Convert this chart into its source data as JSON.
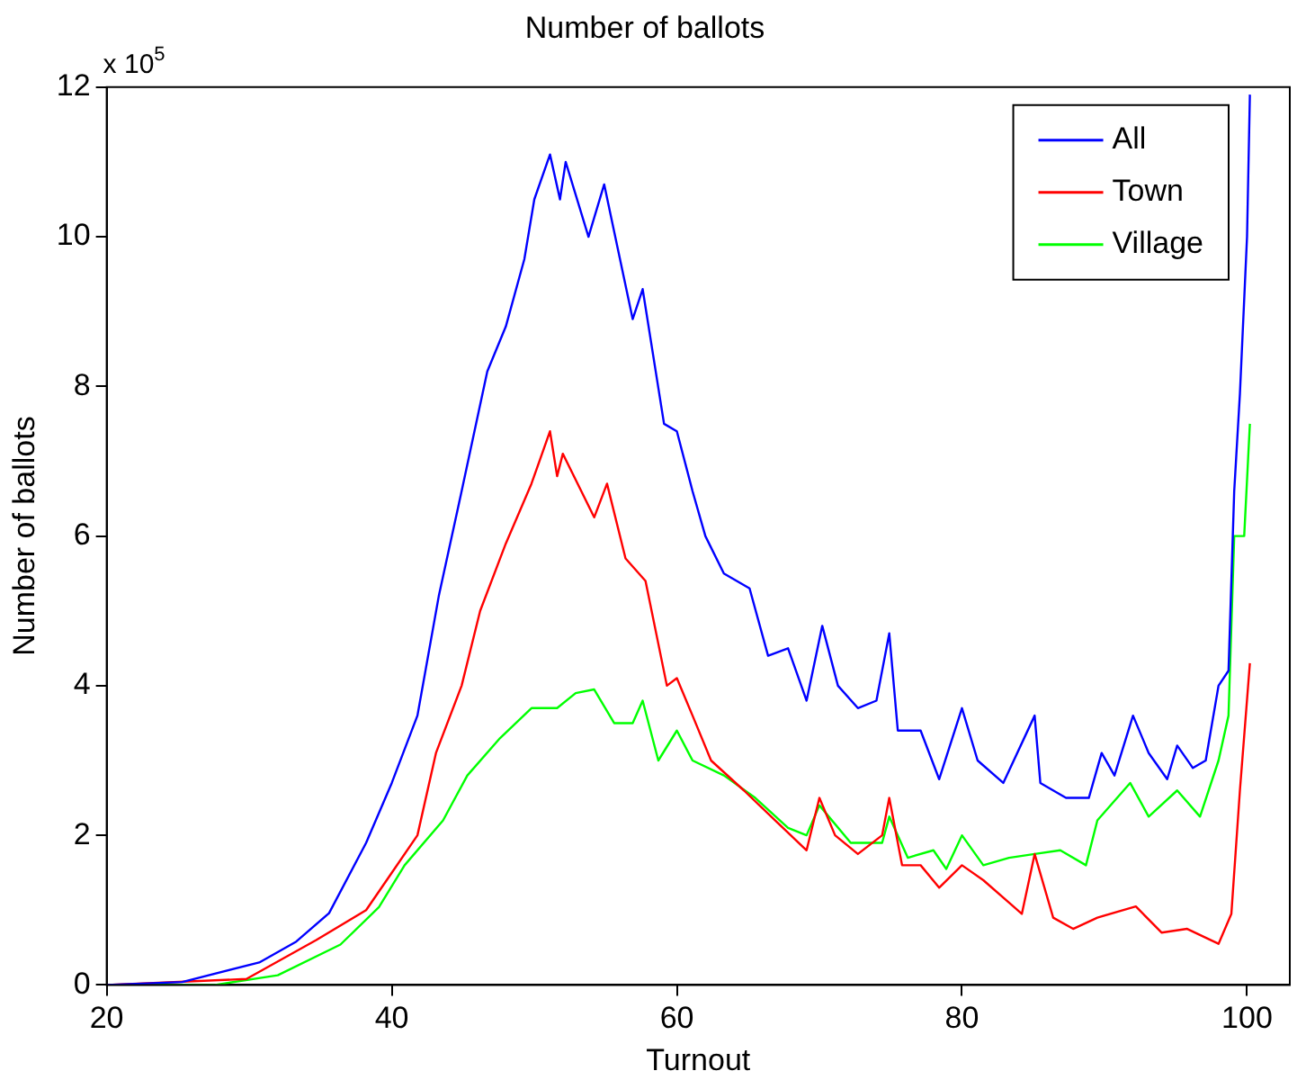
{
  "chart_data": {
    "type": "line",
    "title": "Number of ballots",
    "xlabel": "Turnout",
    "ylabel": "Number of ballots",
    "annotations": [
      "x 10$^{5}$"
    ],
    "xlim": [
      20,
      103
    ],
    "xticks": [
      20,
      40,
      60,
      80,
      100
    ],
    "ylim": [
      0,
      12
    ],
    "yticks": [
      0,
      2,
      4,
      6,
      8,
      10,
      12
    ],
    "grid": false,
    "legend": "top right",
    "marker": "none",
    "line_style": "solid",
    "series": [
      {
        "name": "All",
        "color": "#0000ff",
        "x": [
          20,
          25.3,
          30.7,
          33.3,
          35.6,
          38.2,
          40,
          41.8,
          43.3,
          44.9,
          46.7,
          48,
          49.3,
          50,
          51.1,
          51.8,
          52.2,
          53.8,
          54.9,
          56.9,
          57.6,
          59.1,
          60,
          61.1,
          62,
          63.3,
          65.1,
          66.4,
          67.8,
          69.1,
          70.2,
          71.3,
          72.7,
          74,
          74.9,
          75.5,
          77.1,
          78.4,
          80,
          81.1,
          82.9,
          85.1,
          85.5,
          87.3,
          88.9,
          89.8,
          90.7,
          92,
          93.1,
          94.4,
          95.1,
          96.2,
          97.1,
          98,
          98.7,
          99.1,
          99.5,
          100,
          100.2
        ],
        "values": [
          0,
          0.04,
          0.3,
          0.58,
          0.96,
          1.9,
          2.7,
          3.6,
          5.2,
          6.6,
          8.2,
          8.8,
          9.7,
          10.5,
          11.1,
          10.5,
          11,
          10,
          10.7,
          8.9,
          9.3,
          7.5,
          7.4,
          6.6,
          6,
          5.5,
          5.3,
          4.4,
          4.5,
          3.8,
          4.8,
          4,
          3.7,
          3.8,
          4.7,
          3.4,
          3.4,
          2.75,
          3.7,
          3,
          2.7,
          3.6,
          2.7,
          2.5,
          2.5,
          3.1,
          2.8,
          3.6,
          3.1,
          2.75,
          3.2,
          2.9,
          3,
          4,
          4.2,
          6.6,
          7.9,
          10,
          11.9
        ]
      },
      {
        "name": "Town",
        "color": "#ff0000",
        "x": [
          20,
          29.8,
          34.7,
          38.2,
          40,
          41.8,
          43.1,
          44.9,
          46.2,
          48,
          49.8,
          51.1,
          51.6,
          52,
          54.2,
          55.1,
          56.4,
          57.8,
          59.3,
          60,
          61.1,
          62.4,
          64.7,
          66.9,
          69.1,
          70,
          71.1,
          72.7,
          74.4,
          74.9,
          75.8,
          77.1,
          78.4,
          80,
          81.5,
          83.3,
          84.2,
          85.1,
          86.4,
          87.8,
          89.5,
          92.2,
          94,
          95.8,
          98,
          98.9,
          99.5,
          100.2
        ],
        "values": [
          0,
          0.08,
          0.6,
          1,
          1.5,
          2,
          3.1,
          4,
          5,
          5.9,
          6.7,
          7.4,
          6.8,
          7.1,
          6.25,
          6.7,
          5.7,
          5.4,
          4,
          4.1,
          3.6,
          3,
          2.6,
          2.2,
          1.8,
          2.5,
          2,
          1.75,
          2,
          2.5,
          1.6,
          1.6,
          1.3,
          1.6,
          1.4,
          1.1,
          0.95,
          1.75,
          0.9,
          0.75,
          0.9,
          1.05,
          0.7,
          0.75,
          0.55,
          0.95,
          2.6,
          4.3
        ]
      },
      {
        "name": "Village",
        "color": "#00ff00",
        "x": [
          20,
          27.6,
          32,
          36.4,
          39.1,
          40.9,
          43.6,
          45.3,
          47.6,
          49.8,
          51.6,
          52.9,
          54.2,
          55.6,
          56.9,
          57.6,
          58.7,
          60,
          61.1,
          63.3,
          65.5,
          67.8,
          69.1,
          70,
          72.2,
          74.4,
          74.9,
          76.2,
          78,
          78.9,
          80,
          81.5,
          83.3,
          85.1,
          86.9,
          88.7,
          89.5,
          91.8,
          93.1,
          95.1,
          96.7,
          98,
          98.7,
          99.1,
          99.8,
          100.2
        ],
        "values": [
          0,
          0,
          0.13,
          0.54,
          1.04,
          1.6,
          2.2,
          2.8,
          3.3,
          3.7,
          3.7,
          3.9,
          3.95,
          3.5,
          3.5,
          3.8,
          3,
          3.4,
          3,
          2.8,
          2.5,
          2.1,
          2,
          2.4,
          1.9,
          1.9,
          2.25,
          1.7,
          1.8,
          1.55,
          2,
          1.6,
          1.7,
          1.75,
          1.8,
          1.6,
          2.2,
          2.7,
          2.25,
          2.6,
          2.25,
          3,
          3.6,
          6,
          6,
          7.5
        ]
      }
    ]
  }
}
